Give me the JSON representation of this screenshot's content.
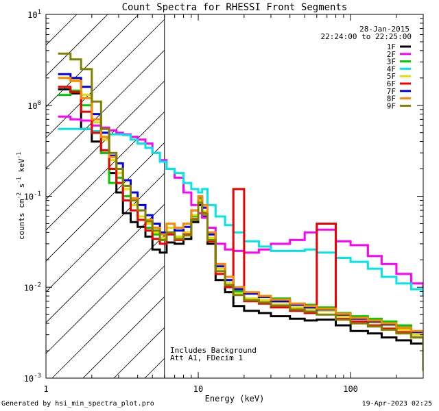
{
  "chart_data": {
    "type": "line",
    "title": "Count Spectra for RHESSI Front Segments",
    "xlabel": "Energy (keV)",
    "ylabel": "counts cm^-2 s^-1 keV^-1",
    "x_scale": "log",
    "y_scale": "log",
    "xlim": [
      1,
      300
    ],
    "ylim": [
      0.001,
      10
    ],
    "x_ticks": [
      {
        "value": 1,
        "label": "1"
      },
      {
        "value": 10,
        "label": "10"
      },
      {
        "value": 100,
        "label": "100"
      }
    ],
    "y_ticks": [
      {
        "value": 0.001,
        "base": "10",
        "exp": "-3"
      },
      {
        "value": 0.01,
        "base": "10",
        "exp": "-2"
      },
      {
        "value": 0.1,
        "base": "10",
        "exp": "-1"
      },
      {
        "value": 1,
        "base": "10",
        "exp": "0"
      },
      {
        "value": 10,
        "base": "10",
        "exp": "1"
      }
    ],
    "date": "28-Jan-2015",
    "time_range": "22:24:00 to 22:25:00",
    "annotations": [
      "Includes Background",
      "Att A1, FDecim 1"
    ],
    "shaded_region": {
      "x_min": 1,
      "x_max": 6
    },
    "series": [
      {
        "name": "1F",
        "color": "#000000",
        "x": [
          1.2,
          1.45,
          1.7,
          2.0,
          2.3,
          2.6,
          2.9,
          3.2,
          3.6,
          4.0,
          4.5,
          5.0,
          5.6,
          6.2,
          7.0,
          8.0,
          9.0,
          10.0,
          10.6,
          11.5,
          13,
          15,
          17,
          20,
          25,
          30,
          40,
          50,
          60,
          80,
          100,
          130,
          160,
          200,
          250,
          300
        ],
        "y": [
          1.5,
          1.35,
          0.55,
          0.4,
          0.3,
          0.18,
          0.11,
          0.065,
          0.052,
          0.046,
          0.036,
          0.026,
          0.024,
          0.031,
          0.03,
          0.034,
          0.052,
          0.08,
          0.06,
          0.03,
          0.012,
          0.0088,
          0.0062,
          0.0055,
          0.0052,
          0.0048,
          0.0045,
          0.0043,
          0.0044,
          0.0038,
          0.0033,
          0.0031,
          0.0028,
          0.0026,
          0.0024,
          0.0025
        ]
      },
      {
        "name": "2F",
        "color": "#ff00ff",
        "x": [
          1.2,
          1.45,
          1.7,
          2.0,
          2.3,
          2.6,
          2.9,
          3.2,
          3.6,
          4.0,
          4.5,
          5.0,
          5.6,
          6.2,
          7.0,
          8.0,
          9.0,
          10.0,
          10.6,
          11.5,
          13,
          15,
          17,
          20,
          25,
          30,
          40,
          50,
          60,
          80,
          100,
          130,
          160,
          200,
          250,
          300
        ],
        "y": [
          0.75,
          0.7,
          0.68,
          0.6,
          0.57,
          0.53,
          0.5,
          0.48,
          0.45,
          0.42,
          0.38,
          0.3,
          0.25,
          0.2,
          0.16,
          0.11,
          0.08,
          0.065,
          0.058,
          0.045,
          0.03,
          0.026,
          0.025,
          0.024,
          0.026,
          0.03,
          0.033,
          0.04,
          0.043,
          0.032,
          0.029,
          0.022,
          0.018,
          0.014,
          0.011,
          0.0095
        ]
      },
      {
        "name": "3F",
        "color": "#00cc00",
        "x": [
          1.2,
          1.45,
          1.7,
          2.0,
          2.3,
          2.6,
          2.9,
          3.2,
          3.6,
          4.0,
          4.5,
          5.0,
          5.6,
          6.2,
          7.0,
          8.0,
          9.0,
          10.0,
          10.6,
          11.5,
          13,
          15,
          17,
          20,
          25,
          30,
          40,
          50,
          60,
          80,
          100,
          130,
          160,
          200,
          250,
          300
        ],
        "y": [
          1.3,
          1.45,
          1.0,
          0.5,
          0.3,
          0.14,
          0.16,
          0.1,
          0.08,
          0.06,
          0.045,
          0.038,
          0.033,
          0.04,
          0.036,
          0.04,
          0.06,
          0.095,
          0.075,
          0.04,
          0.018,
          0.012,
          0.009,
          0.0085,
          0.008,
          0.0075,
          0.0066,
          0.0064,
          0.006,
          0.0052,
          0.0048,
          0.0045,
          0.0042,
          0.0038,
          0.0032,
          0.003
        ]
      },
      {
        "name": "4F",
        "color": "#00e5e5",
        "x": [
          1.2,
          1.45,
          1.7,
          2.0,
          2.3,
          2.6,
          2.9,
          3.2,
          3.6,
          4.0,
          4.5,
          5.0,
          5.6,
          6.2,
          7.0,
          8.0,
          9.0,
          10.0,
          10.6,
          11.5,
          13,
          15,
          17,
          20,
          25,
          30,
          40,
          50,
          60,
          80,
          100,
          130,
          160,
          200,
          250,
          300
        ],
        "y": [
          0.55,
          0.55,
          0.55,
          0.52,
          0.5,
          0.48,
          0.48,
          0.47,
          0.42,
          0.38,
          0.34,
          0.3,
          0.24,
          0.2,
          0.18,
          0.14,
          0.12,
          0.11,
          0.12,
          0.08,
          0.06,
          0.048,
          0.04,
          0.032,
          0.028,
          0.025,
          0.025,
          0.026,
          0.024,
          0.021,
          0.019,
          0.016,
          0.013,
          0.011,
          0.0095,
          0.008
        ]
      },
      {
        "name": "5F",
        "color": "#dddd00",
        "x": [
          1.2,
          1.45,
          1.7,
          2.0,
          2.3,
          2.6,
          2.9,
          3.2,
          3.6,
          4.0,
          4.5,
          5.0,
          5.6,
          6.2,
          7.0,
          8.0,
          9.0,
          10.0,
          10.6,
          11.5,
          13,
          15,
          17,
          20,
          25,
          30,
          40,
          50,
          60,
          80,
          100,
          130,
          160,
          200,
          250,
          300
        ],
        "y": [
          2.0,
          1.9,
          1.3,
          0.65,
          0.42,
          0.25,
          0.18,
          0.12,
          0.08,
          0.06,
          0.05,
          0.04,
          0.035,
          0.045,
          0.036,
          0.04,
          0.062,
          0.09,
          0.068,
          0.035,
          0.016,
          0.011,
          0.0085,
          0.0075,
          0.0072,
          0.0068,
          0.006,
          0.0058,
          0.0055,
          0.0048,
          0.0045,
          0.0041,
          0.0038,
          0.0034,
          0.003,
          0.0028
        ]
      },
      {
        "name": "6F",
        "color": "#ee0000",
        "x": [
          1.2,
          1.45,
          1.7,
          2.0,
          2.3,
          2.6,
          2.9,
          3.2,
          3.6,
          4.0,
          4.5,
          5.0,
          5.6,
          6.2,
          7.0,
          8.0,
          9.0,
          10.0,
          10.6,
          11.5,
          13,
          15,
          17,
          20,
          25,
          30,
          40,
          50,
          60,
          80,
          100,
          130,
          160,
          200,
          250,
          300
        ],
        "y": [
          1.6,
          1.4,
          0.85,
          0.5,
          0.32,
          0.2,
          0.14,
          0.09,
          0.07,
          0.055,
          0.042,
          0.034,
          0.03,
          0.038,
          0.033,
          0.038,
          0.056,
          0.085,
          0.065,
          0.032,
          0.014,
          0.01,
          0.12,
          0.007,
          0.0066,
          0.006,
          0.0055,
          0.0052,
          0.05,
          0.0045,
          0.0042,
          0.0038,
          0.0035,
          0.0032,
          0.0028,
          0.0026
        ]
      },
      {
        "name": "7F",
        "color": "#0000ee",
        "x": [
          1.2,
          1.45,
          1.7,
          2.0,
          2.3,
          2.6,
          2.9,
          3.2,
          3.6,
          4.0,
          4.5,
          5.0,
          5.6,
          6.2,
          7.0,
          8.0,
          9.0,
          10.0,
          10.6,
          11.5,
          13,
          15,
          17,
          20,
          25,
          30,
          40,
          50,
          60,
          80,
          100,
          130,
          160,
          200,
          250,
          300
        ],
        "y": [
          2.2,
          2.0,
          1.6,
          0.8,
          0.5,
          0.28,
          0.23,
          0.15,
          0.11,
          0.08,
          0.062,
          0.05,
          0.04,
          0.05,
          0.042,
          0.046,
          0.07,
          0.1,
          0.075,
          0.038,
          0.017,
          0.012,
          0.0095,
          0.0085,
          0.0078,
          0.007,
          0.0064,
          0.006,
          0.0057,
          0.005,
          0.0045,
          0.0042,
          0.0039,
          0.0036,
          0.0032,
          0.003
        ]
      },
      {
        "name": "8F",
        "color": "#ff8800",
        "x": [
          1.2,
          1.45,
          1.7,
          2.0,
          2.3,
          2.6,
          2.9,
          3.2,
          3.6,
          4.0,
          4.5,
          5.0,
          5.6,
          6.2,
          7.0,
          8.0,
          9.0,
          10.0,
          10.6,
          11.5,
          13,
          15,
          17,
          20,
          25,
          30,
          40,
          50,
          60,
          80,
          100,
          130,
          160,
          200,
          250,
          300
        ],
        "y": [
          2.0,
          1.85,
          1.2,
          0.7,
          0.45,
          0.27,
          0.2,
          0.13,
          0.095,
          0.07,
          0.055,
          0.045,
          0.038,
          0.05,
          0.045,
          0.05,
          0.07,
          0.1,
          0.08,
          0.04,
          0.018,
          0.013,
          0.01,
          0.0088,
          0.008,
          0.0073,
          0.0066,
          0.0062,
          0.0058,
          0.0051,
          0.0046,
          0.0043,
          0.004,
          0.0036,
          0.0033,
          0.003
        ]
      },
      {
        "name": "9F",
        "color": "#808000",
        "x": [
          1.2,
          1.45,
          1.7,
          2.0,
          2.3,
          2.6,
          2.9,
          3.2,
          3.6,
          4.0,
          4.5,
          5.0,
          5.6,
          6.2,
          7.0,
          8.0,
          9.0,
          10.0,
          10.6,
          11.5,
          13,
          15,
          17,
          20,
          25,
          30,
          40,
          50,
          60,
          80,
          100,
          130,
          160,
          200,
          250,
          300
        ],
        "y": [
          3.7,
          3.2,
          2.5,
          1.1,
          0.55,
          0.3,
          0.2,
          0.13,
          0.09,
          0.07,
          0.053,
          0.042,
          0.033,
          0.04,
          0.034,
          0.037,
          0.055,
          0.085,
          0.064,
          0.033,
          0.015,
          0.0105,
          0.0082,
          0.0072,
          0.0068,
          0.0063,
          0.0057,
          0.0054,
          0.005,
          0.0044,
          0.004,
          0.0037,
          0.0034,
          0.0031,
          0.0028,
          0.0012
        ]
      }
    ]
  },
  "footer": {
    "generated_by": "Generated by hsi_min_spectra_plot.pro",
    "timestamp": "19-Apr-2023 02:25"
  }
}
